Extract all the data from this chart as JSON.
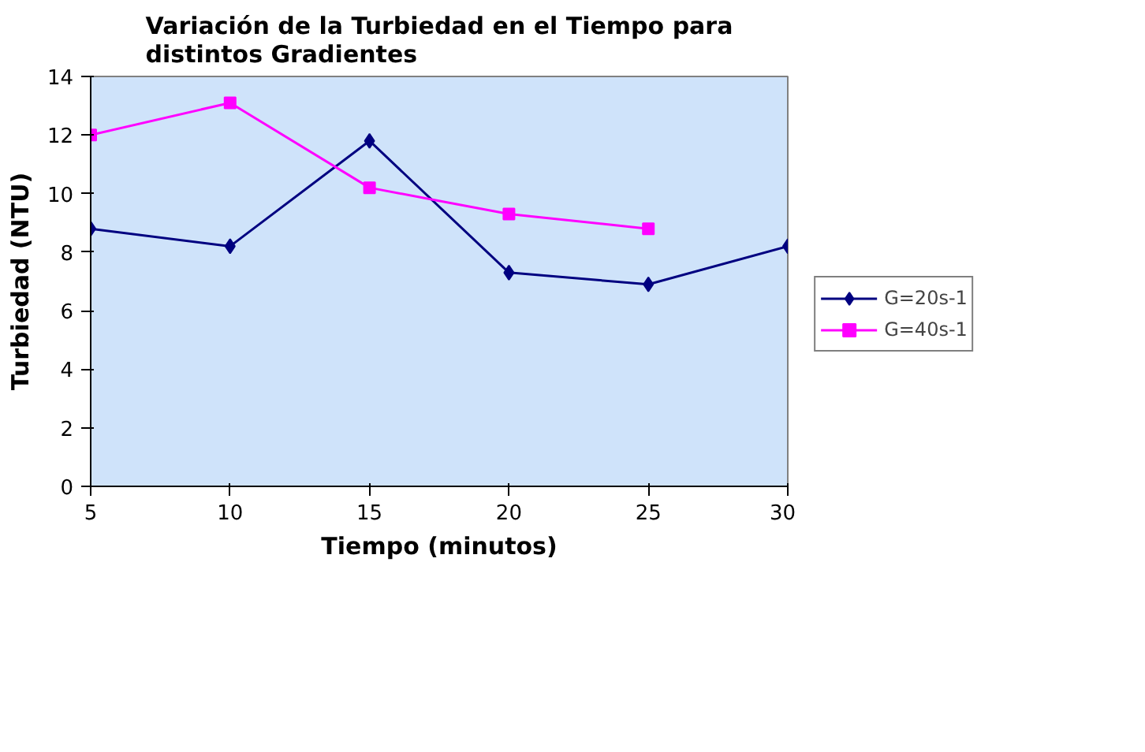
{
  "chart_data": {
    "type": "line",
    "title": "Variación de la Turbiedad en el Tiempo para\ndistintos Gradientes",
    "xlabel": "Tiempo (minutos)",
    "ylabel": "Turbiedad (NTU)",
    "x": [
      5,
      10,
      15,
      20,
      25,
      30
    ],
    "series": [
      {
        "name": "G=20s-1",
        "color": "#000080",
        "marker": "diamond",
        "values": [
          8.8,
          8.2,
          11.8,
          7.3,
          6.9,
          8.2
        ]
      },
      {
        "name": "G=40s-1",
        "color": "#ff00ff",
        "marker": "square",
        "values": [
          12.0,
          13.1,
          10.2,
          9.3,
          8.8,
          null
        ]
      }
    ],
    "xlim": [
      5,
      30
    ],
    "xticks": [
      5,
      10,
      15,
      20,
      25,
      30
    ],
    "ylim": [
      0,
      14
    ],
    "yticks": [
      0,
      2,
      4,
      6,
      8,
      10,
      12,
      14
    ],
    "grid": false,
    "legend": "right",
    "line_style": "solid"
  }
}
